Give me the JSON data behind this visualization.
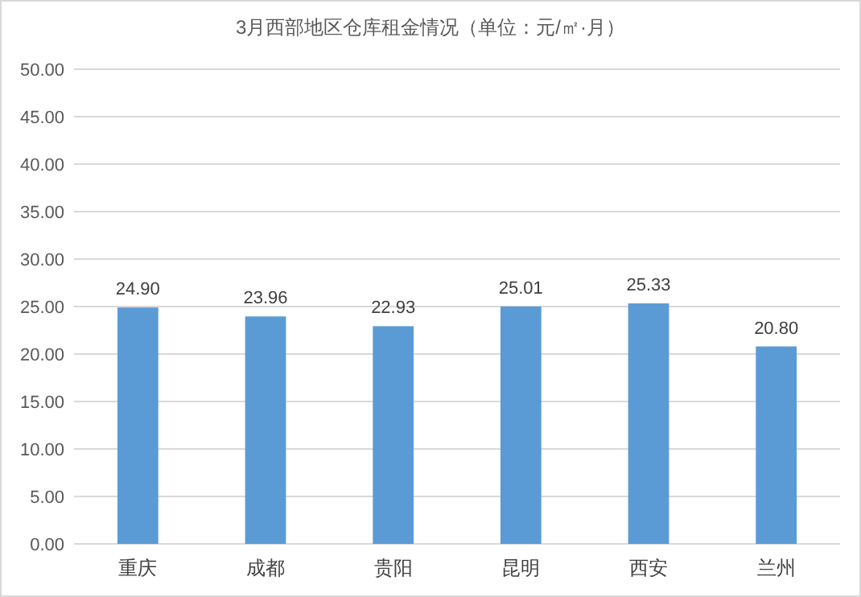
{
  "chart_data": {
    "type": "bar",
    "title": "3月西部地区仓库租金情况（单位：元/㎡·月）",
    "categories": [
      "重庆",
      "成都",
      "贵阳",
      "昆明",
      "西安",
      "兰州"
    ],
    "values": [
      24.9,
      23.96,
      22.93,
      25.01,
      25.33,
      20.8
    ],
    "value_labels": [
      "24.90",
      "23.96",
      "22.93",
      "25.01",
      "25.33",
      "20.80"
    ],
    "color": "#5b9bd5",
    "ylim": [
      0,
      50
    ],
    "yticks": [
      {
        "value": 0,
        "label": "0.00"
      },
      {
        "value": 5,
        "label": "5.00"
      },
      {
        "value": 10,
        "label": "10.00"
      },
      {
        "value": 15,
        "label": "15.00"
      },
      {
        "value": 20,
        "label": "20.00"
      },
      {
        "value": 25,
        "label": "25.00"
      },
      {
        "value": 30,
        "label": "30.00"
      },
      {
        "value": 35,
        "label": "35.00"
      },
      {
        "value": 40,
        "label": "40.00"
      },
      {
        "value": 45,
        "label": "45.00"
      },
      {
        "value": 50,
        "label": "50.00"
      }
    ],
    "grid": "y"
  }
}
